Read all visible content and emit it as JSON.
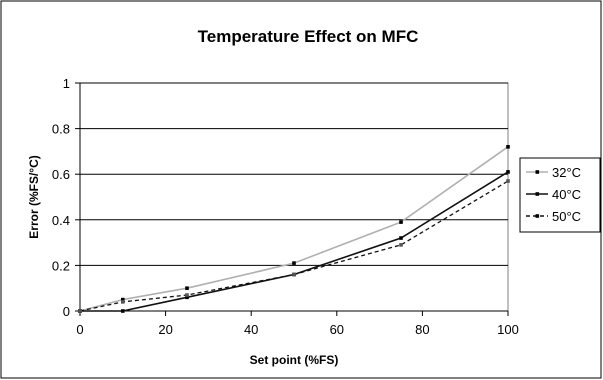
{
  "chart_data": {
    "type": "line",
    "title": "Temperature Effect on MFC",
    "xlabel": "Set point (%FS)",
    "ylabel": "Error (%FS/°C)",
    "xlim": [
      0,
      100
    ],
    "ylim": [
      0,
      1
    ],
    "x_ticks": [
      "0",
      "20",
      "40",
      "60",
      "80",
      "100"
    ],
    "y_ticks": [
      "0",
      "0.2",
      "0.4",
      "0.6",
      "0.8",
      "1"
    ],
    "grid": "horizontal major gridlines",
    "legend_position": "right",
    "series": [
      {
        "name": "32°C",
        "color": "#b0b0b0",
        "dash": "solid",
        "x": [
          0,
          10,
          25,
          50,
          75,
          100
        ],
        "y": [
          0,
          0.05,
          0.1,
          0.21,
          0.39,
          0.72
        ]
      },
      {
        "name": "40°C",
        "color": "#111111",
        "dash": "solid",
        "x": [
          0,
          10,
          25,
          50,
          75,
          100
        ],
        "y": [
          0,
          0,
          0.06,
          0.16,
          0.32,
          0.61
        ]
      },
      {
        "name": "50°C",
        "color": "#111111",
        "dash": "dashed",
        "x": [
          0,
          10,
          25,
          50,
          75,
          100
        ],
        "y": [
          0,
          0.04,
          0.07,
          0.16,
          0.29,
          0.57
        ]
      }
    ]
  }
}
